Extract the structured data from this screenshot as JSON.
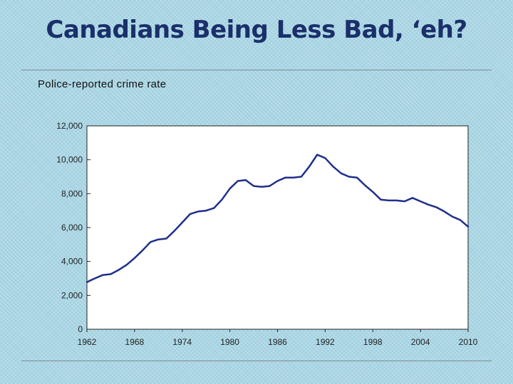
{
  "slide": {
    "title": "Canadians Being Less Bad, ‘eh?"
  },
  "chart_data": {
    "type": "line",
    "title": "Police-reported crime rate",
    "xlabel": "",
    "ylabel": "",
    "xlim": [
      1962,
      2010
    ],
    "ylim": [
      0,
      12000
    ],
    "yticks": [
      0,
      2000,
      4000,
      6000,
      8000,
      10000,
      12000
    ],
    "ytick_labels": [
      "0",
      "2,000",
      "4,000",
      "6,000",
      "8,000",
      "10,000",
      "12,000"
    ],
    "xticks": [
      1962,
      1968,
      1974,
      1980,
      1986,
      1992,
      1998,
      2004,
      2010
    ],
    "xtick_labels": [
      "1962",
      "1968",
      "1974",
      "1980",
      "1986",
      "1992",
      "1998",
      "2004",
      "2010"
    ],
    "grid": false,
    "line_color": "#1f2f8c",
    "series": [
      {
        "x": [
          1962,
          1963,
          1964,
          1965,
          1966,
          1967,
          1968,
          1969,
          1970,
          1971,
          1972,
          1973,
          1974,
          1975,
          1976,
          1977,
          1978,
          1979,
          1980,
          1981,
          1982,
          1983,
          1984,
          1985,
          1986,
          1987,
          1988,
          1989,
          1990,
          1991,
          1992,
          1993,
          1994,
          1995,
          1996,
          1997,
          1998,
          1999,
          2000,
          2001,
          2002,
          2003,
          2004,
          2005,
          2006,
          2007,
          2008,
          2009,
          2010
        ],
        "y": [
          2780,
          3000,
          3200,
          3250,
          3500,
          3800,
          4200,
          4650,
          5150,
          5300,
          5350,
          5800,
          6300,
          6800,
          6950,
          7000,
          7150,
          7650,
          8300,
          8750,
          8800,
          8450,
          8400,
          8450,
          8750,
          8950,
          8950,
          9000,
          9600,
          10300,
          10100,
          9600,
          9200,
          9000,
          8950,
          8500,
          8100,
          7650,
          7600,
          7600,
          7550,
          7750,
          7550,
          7350,
          7200,
          6950,
          6650,
          6450,
          6050
        ]
      }
    ]
  }
}
